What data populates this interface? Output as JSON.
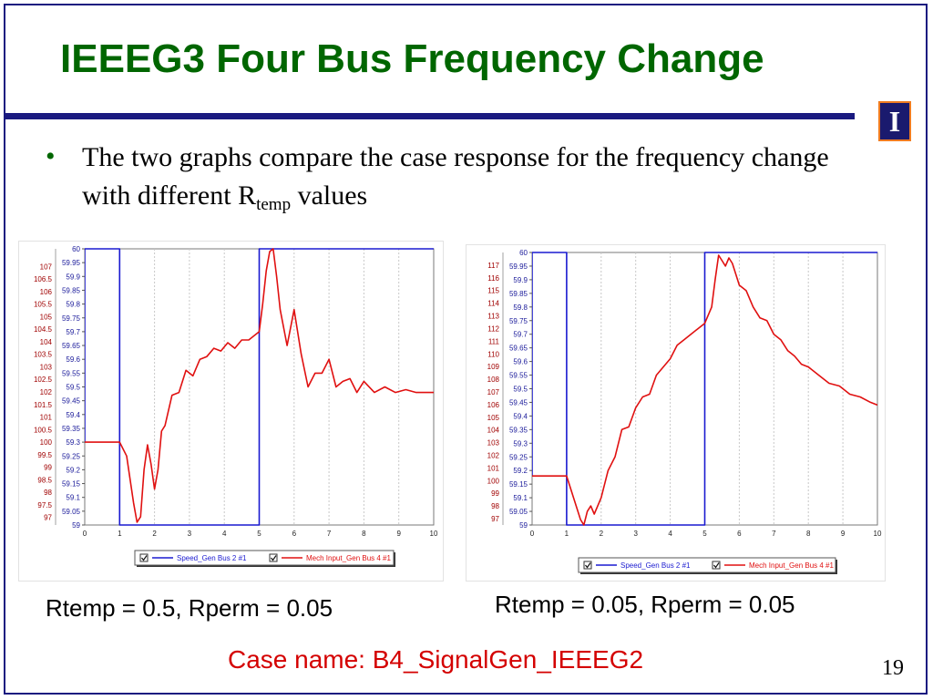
{
  "slide": {
    "title": "IEEEG3 Four Bus Frequency Change",
    "bullet_main": "The two graphs compare the case response for the frequency change with different R",
    "bullet_sub": "temp",
    "bullet_tail": " values",
    "caption_left": "Rtemp = 0.5, Rperm = 0.05",
    "caption_right": "Rtemp = 0.05, Rperm = 0.05",
    "case_name": "Case name: B4_SignalGen_IEEEG2",
    "page_number": "19",
    "logo_letter": "I",
    "colors": {
      "title": "#006600",
      "rule": "#1a1a80",
      "case_name": "#d40000",
      "speed_series": "#1a1ad0",
      "mech_series": "#e01010"
    }
  },
  "chart_data": [
    {
      "type": "line",
      "x_ticks": [
        "0",
        "1",
        "2",
        "3",
        "4",
        "5",
        "6",
        "7",
        "8",
        "9",
        "10"
      ],
      "xlim": [
        0,
        10
      ],
      "y_left_outer_ticks": [
        "107",
        "106.5",
        "106",
        "105.5",
        "105",
        "104.5",
        "104",
        "103.5",
        "103",
        "102.5",
        "102",
        "101.5",
        "101",
        "100.5",
        "100",
        "99.5",
        "99",
        "98.5",
        "98",
        "97.5",
        "97"
      ],
      "y_left_outer_lim": [
        96.7,
        107.7
      ],
      "y_left_inner_ticks": [
        "60",
        "59.95",
        "59.9",
        "59.85",
        "59.8",
        "59.75",
        "59.7",
        "59.65",
        "59.6",
        "59.55",
        "59.5",
        "59.45",
        "59.4",
        "59.35",
        "59.3",
        "59.25",
        "59.2",
        "59.15",
        "59.1",
        "59.05",
        "59"
      ],
      "y_left_inner_lim": [
        59,
        60
      ],
      "grid": true,
      "legend_placement": "bottom",
      "series": [
        {
          "name": "Speed_Gen Bus 2 #1",
          "axis": "inner",
          "x": [
            0,
            0.001,
            1.0,
            1.001,
            5.0,
            5.001,
            10
          ],
          "y": [
            59.3,
            60,
            60,
            59,
            59,
            60,
            60
          ]
        },
        {
          "name": "Mech Input_Gen Bus 4 #1",
          "axis": "inner",
          "x": [
            0,
            1.0,
            1.2,
            1.4,
            1.5,
            1.6,
            1.7,
            1.8,
            1.9,
            2.0,
            2.1,
            2.2,
            2.3,
            2.5,
            2.7,
            2.9,
            3.1,
            3.3,
            3.5,
            3.7,
            3.9,
            4.1,
            4.3,
            4.5,
            4.7,
            4.9,
            5.0,
            5.1,
            5.2,
            5.3,
            5.4,
            5.5,
            5.6,
            5.8,
            6.0,
            6.2,
            6.4,
            6.6,
            6.8,
            7.0,
            7.2,
            7.4,
            7.6,
            7.8,
            8.0,
            8.3,
            8.6,
            8.9,
            9.2,
            9.5,
            9.8,
            10
          ],
          "y": [
            59.3,
            59.3,
            59.25,
            59.08,
            59.01,
            59.03,
            59.2,
            59.29,
            59.22,
            59.13,
            59.2,
            59.34,
            59.36,
            59.47,
            59.48,
            59.56,
            59.54,
            59.6,
            59.61,
            59.64,
            59.63,
            59.66,
            59.64,
            59.67,
            59.67,
            59.69,
            59.7,
            59.8,
            59.92,
            59.99,
            60.0,
            59.9,
            59.78,
            59.65,
            59.78,
            59.62,
            59.5,
            59.55,
            59.55,
            59.6,
            59.5,
            59.52,
            59.53,
            59.48,
            59.52,
            59.48,
            59.5,
            59.48,
            59.49,
            59.48,
            59.48,
            59.48
          ]
        }
      ]
    },
    {
      "type": "line",
      "x_ticks": [
        "0",
        "1",
        "2",
        "3",
        "4",
        "5",
        "6",
        "7",
        "8",
        "9",
        "10"
      ],
      "xlim": [
        0,
        10
      ],
      "y_left_outer_ticks": [
        "117",
        "116",
        "115",
        "114",
        "113",
        "112",
        "111",
        "110",
        "109",
        "108",
        "107",
        "106",
        "105",
        "104",
        "103",
        "102",
        "101",
        "100",
        "99",
        "98",
        "97"
      ],
      "y_left_outer_lim": [
        96.5,
        118
      ],
      "y_left_inner_ticks": [
        "60",
        "59.95",
        "59.9",
        "59.85",
        "59.8",
        "59.75",
        "59.7",
        "59.65",
        "59.6",
        "59.55",
        "59.5",
        "59.45",
        "59.4",
        "59.35",
        "59.3",
        "59.25",
        "59.2",
        "59.15",
        "59.1",
        "59.05",
        "59"
      ],
      "y_left_inner_lim": [
        59,
        60
      ],
      "grid": true,
      "legend_placement": "bottom",
      "series": [
        {
          "name": "Speed_Gen Bus 2 #1",
          "axis": "inner",
          "x": [
            0,
            0.001,
            1.0,
            1.001,
            5.0,
            5.001,
            10
          ],
          "y": [
            59.18,
            60,
            60,
            59,
            59,
            60,
            60
          ]
        },
        {
          "name": "Mech Input_Gen Bus 4 #1",
          "axis": "inner",
          "x": [
            0,
            1.0,
            1.2,
            1.4,
            1.5,
            1.6,
            1.7,
            1.8,
            1.9,
            2.0,
            2.2,
            2.4,
            2.6,
            2.8,
            3.0,
            3.2,
            3.4,
            3.6,
            3.8,
            4.0,
            4.2,
            4.4,
            4.6,
            4.8,
            5.0,
            5.2,
            5.3,
            5.4,
            5.5,
            5.6,
            5.7,
            5.8,
            5.9,
            6.0,
            6.2,
            6.4,
            6.6,
            6.8,
            7.0,
            7.2,
            7.4,
            7.6,
            7.8,
            8.0,
            8.3,
            8.6,
            8.9,
            9.2,
            9.5,
            9.8,
            10
          ],
          "y": [
            59.18,
            59.18,
            59.1,
            59.02,
            59.0,
            59.05,
            59.07,
            59.04,
            59.07,
            59.1,
            59.2,
            59.25,
            59.35,
            59.36,
            59.43,
            59.47,
            59.48,
            59.55,
            59.58,
            59.61,
            59.66,
            59.68,
            59.7,
            59.72,
            59.74,
            59.8,
            59.9,
            59.99,
            59.97,
            59.95,
            59.98,
            59.96,
            59.92,
            59.88,
            59.86,
            59.8,
            59.76,
            59.75,
            59.7,
            59.68,
            59.64,
            59.62,
            59.59,
            59.58,
            59.55,
            59.52,
            59.51,
            59.48,
            59.47,
            59.45,
            59.44
          ]
        }
      ]
    }
  ]
}
